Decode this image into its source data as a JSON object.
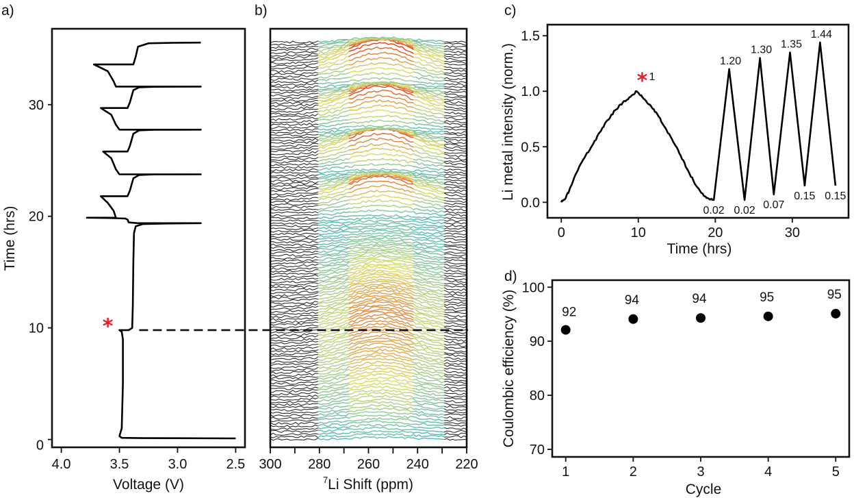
{
  "colors": {
    "axis": "#111111",
    "curve": "#000000",
    "highlight_star": "#e8202a",
    "spectra_baseline": "#2b2b2b",
    "spectra_low": "#3bb8d0",
    "spectra_mid": "#e9e46a",
    "spectra_high": "#e63a22"
  },
  "chart_data": [
    {
      "panel_label": "a)",
      "type": "line",
      "title": "",
      "xlabel": "Voltage (V)",
      "ylabel": "Time (hrs)",
      "xlim": [
        4.08,
        2.42
      ],
      "ylim": [
        -0.7,
        36.8
      ],
      "x_ticks": [
        4.0,
        3.5,
        3.0,
        2.5
      ],
      "x_tick_labels": [
        "4.0",
        "3.5",
        "3.0",
        "2.5"
      ],
      "y_ticks": [
        0,
        10,
        20,
        30
      ],
      "y_tick_labels": [
        "0",
        "10",
        "20",
        "30"
      ],
      "grid": false,
      "annotation": {
        "text": "*",
        "x": 3.6,
        "y": 10.5,
        "color": "#e8202a"
      },
      "dashed_line": {
        "y": 9.8,
        "x_from": 3.33,
        "extends_into": "b)"
      },
      "series": [
        {
          "name": "voltage profile",
          "points": [
            [
              2.5,
              0.1
            ],
            [
              3.3,
              0.12
            ],
            [
              3.48,
              0.15
            ],
            [
              3.5,
              0.3
            ],
            [
              3.48,
              1.0
            ],
            [
              3.47,
              5.0
            ],
            [
              3.47,
              9.0
            ],
            [
              3.48,
              9.65
            ],
            [
              3.5,
              9.8
            ],
            [
              3.42,
              9.8
            ],
            [
              3.39,
              10.0
            ],
            [
              3.385,
              12.0
            ],
            [
              3.38,
              16.0
            ],
            [
              3.375,
              18.5
            ],
            [
              3.36,
              19.1
            ],
            [
              3.3,
              19.3
            ],
            [
              3.1,
              19.35
            ],
            [
              2.8,
              19.38
            ],
            [
              3.34,
              19.38
            ],
            [
              3.42,
              19.45
            ],
            [
              3.43,
              19.7
            ],
            [
              3.45,
              19.8
            ],
            [
              3.6,
              19.85
            ],
            [
              3.78,
              19.87
            ],
            [
              3.53,
              19.87
            ],
            [
              3.55,
              20.5
            ],
            [
              3.6,
              21.2
            ],
            [
              3.66,
              21.8
            ],
            [
              3.43,
              21.8
            ],
            [
              3.41,
              22.3
            ],
            [
              3.38,
              23.4
            ],
            [
              3.33,
              23.7
            ],
            [
              3.2,
              23.75
            ],
            [
              2.8,
              23.76
            ],
            [
              3.5,
              23.76
            ],
            [
              3.53,
              24.2
            ],
            [
              3.57,
              25.2
            ],
            [
              3.64,
              25.8
            ],
            [
              3.43,
              25.8
            ],
            [
              3.41,
              26.3
            ],
            [
              3.38,
              27.4
            ],
            [
              3.33,
              27.7
            ],
            [
              3.2,
              27.75
            ],
            [
              2.8,
              27.76
            ],
            [
              3.5,
              27.76
            ],
            [
              3.53,
              28.2
            ],
            [
              3.57,
              29.1
            ],
            [
              3.66,
              29.7
            ],
            [
              3.43,
              29.7
            ],
            [
              3.41,
              30.2
            ],
            [
              3.38,
              31.3
            ],
            [
              3.33,
              31.55
            ],
            [
              3.2,
              31.6
            ],
            [
              2.8,
              31.62
            ],
            [
              3.53,
              31.62
            ],
            [
              3.55,
              32.1
            ],
            [
              3.6,
              33.0
            ],
            [
              3.72,
              33.6
            ],
            [
              3.38,
              33.6
            ],
            [
              3.36,
              34.3
            ],
            [
              3.34,
              35.2
            ],
            [
              3.25,
              35.5
            ],
            [
              3.0,
              35.55
            ],
            [
              2.8,
              35.56
            ]
          ]
        }
      ]
    },
    {
      "panel_label": "b)",
      "type": "heatmap",
      "description": "stacked 7Li NMR spectra vs time (waterfall), colored by intensity",
      "title": "",
      "xlabel": "⁷Li Shift (ppm)",
      "xlabel_superscript": "7",
      "xlabel_text": "Li Shift (ppm)",
      "ylabel": "",
      "xlim": [
        300,
        220
      ],
      "x_ticks": [
        300,
        280,
        260,
        240,
        220
      ],
      "x_tick_labels": [
        "300",
        "280",
        "260",
        "240",
        "220"
      ],
      "x_minor_ticks": [
        290,
        270,
        250,
        230
      ],
      "time_range_hrs": [
        0,
        35.6
      ],
      "peak_center_ppm": 255,
      "peak_width_ppm": 18,
      "cycle_boundaries_hrs": [
        0,
        9.8,
        19.4,
        23.8,
        27.8,
        31.6,
        35.6
      ],
      "peak_times_hrs": [
        9.8,
        21.8,
        25.8,
        29.7,
        33.6
      ],
      "dashed_line_hrs": 9.8,
      "grid": false
    },
    {
      "panel_label": "c)",
      "type": "line",
      "title": "",
      "xlabel": "Time (hrs)",
      "ylabel": "Li metal intensity (norm.)",
      "xlim": [
        -1.8,
        37.3
      ],
      "ylim": [
        -0.14,
        1.6
      ],
      "x_ticks": [
        0,
        10,
        20,
        30
      ],
      "x_tick_labels": [
        "0",
        "10",
        "20",
        "30"
      ],
      "y_ticks": [
        0.0,
        0.5,
        1.0,
        1.5
      ],
      "y_tick_labels": [
        "0.0",
        "0.5",
        "1.0",
        "1.5"
      ],
      "grid": false,
      "series": [
        {
          "name": "Li metal intensity",
          "x": [
            0,
            0.5,
            1,
            2,
            3,
            4,
            5,
            6,
            7,
            8,
            9,
            9.8,
            10.5,
            11.5,
            12.5,
            13.5,
            14.5,
            15.5,
            16.5,
            17.5,
            18.5,
            19.2,
            19.8,
            21.8,
            23.8,
            25.8,
            27.6,
            29.7,
            31.6,
            33.6,
            35.6
          ],
          "y": [
            0.0,
            0.03,
            0.1,
            0.27,
            0.4,
            0.51,
            0.63,
            0.74,
            0.83,
            0.9,
            0.95,
            1.0,
            0.95,
            0.88,
            0.79,
            0.67,
            0.55,
            0.42,
            0.28,
            0.15,
            0.06,
            0.03,
            0.02,
            1.2,
            0.02,
            1.3,
            0.07,
            1.35,
            0.15,
            1.44,
            0.15
          ]
        }
      ],
      "annotations": [
        {
          "text": "1",
          "x": 9.8,
          "y": 1.0,
          "star": true
        },
        {
          "text": "1.20",
          "x": 21.8,
          "y": 1.2,
          "pos": "above"
        },
        {
          "text": "1.30",
          "x": 25.8,
          "y": 1.3,
          "pos": "above"
        },
        {
          "text": "1.35",
          "x": 29.7,
          "y": 1.35,
          "pos": "above"
        },
        {
          "text": "1.44",
          "x": 33.6,
          "y": 1.44,
          "pos": "above"
        },
        {
          "text": "0.02",
          "x": 19.8,
          "y": 0.02,
          "pos": "below"
        },
        {
          "text": "0.02",
          "x": 23.8,
          "y": 0.02,
          "pos": "below"
        },
        {
          "text": "0.07",
          "x": 27.6,
          "y": 0.07,
          "pos": "below"
        },
        {
          "text": "0.15",
          "x": 31.6,
          "y": 0.15,
          "pos": "below"
        },
        {
          "text": "0.15",
          "x": 35.6,
          "y": 0.15,
          "pos": "below"
        }
      ]
    },
    {
      "panel_label": "d)",
      "type": "scatter",
      "title": "",
      "xlabel": "Cycle",
      "ylabel": "Coulombic efficiency (%)",
      "xlim": [
        0.8,
        5.2
      ],
      "ylim": [
        68.6,
        101.3
      ],
      "x_ticks": [
        1,
        2,
        3,
        4,
        5
      ],
      "x_tick_labels": [
        "1",
        "2",
        "3",
        "4",
        "5"
      ],
      "y_ticks": [
        70,
        80,
        90,
        100
      ],
      "y_tick_labels": [
        "70",
        "80",
        "90",
        "100"
      ],
      "grid": false,
      "x": [
        1,
        2,
        3,
        4,
        5
      ],
      "y": [
        92.1,
        94.1,
        94.3,
        94.6,
        95.1
      ],
      "labels": [
        "92",
        "94",
        "94",
        "95",
        "95"
      ]
    }
  ]
}
